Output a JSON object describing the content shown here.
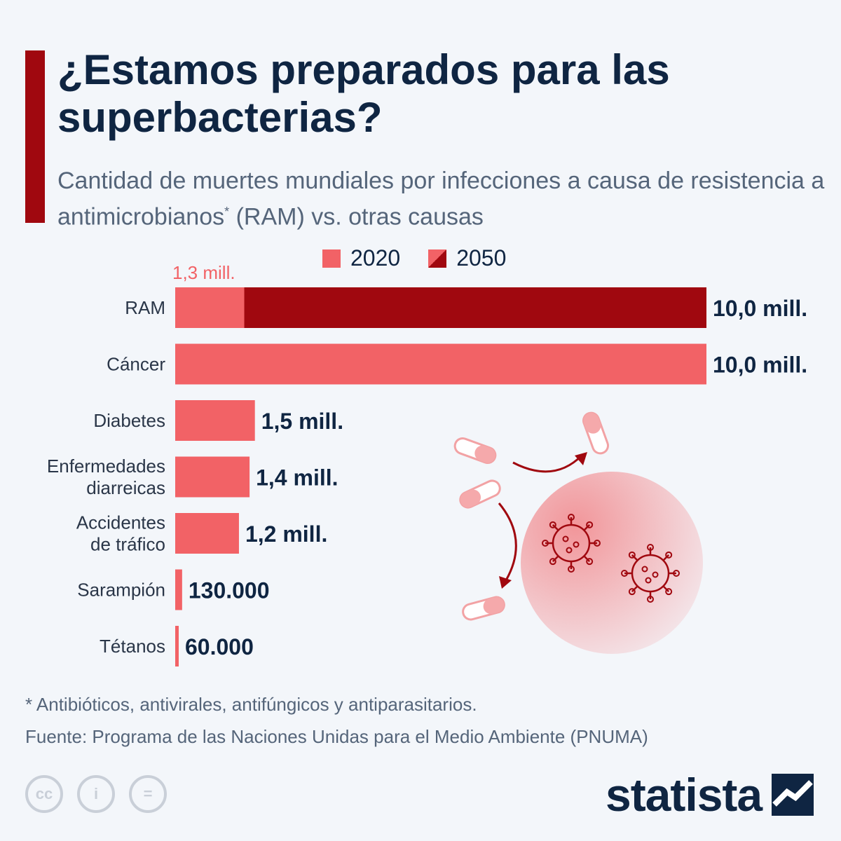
{
  "title": "¿Estamos preparados para las superbacterias?",
  "subtitle": "Cantidad de muertes mundiales por infecciones a causa de resistencia a antimicrobianos",
  "subtitle_sup": "*",
  "subtitle_tail": " (RAM) vs. otras causas",
  "colors": {
    "accent": "#a0080f",
    "bar_2020": "#f26266",
    "bar_2050": "#a0080f",
    "title": "#0f2542",
    "text_muted": "#55657a"
  },
  "legend": [
    {
      "label": "2020"
    },
    {
      "label": "2050"
    }
  ],
  "chart_data": {
    "type": "bar",
    "orientation": "horizontal",
    "categories": [
      "RAM",
      "Cáncer",
      "Diabetes",
      "Enfermedades diarreicas",
      "Accidentes de tráfico",
      "Sarampión",
      "Tétanos"
    ],
    "category_lines": [
      [
        "RAM"
      ],
      [
        "Cáncer"
      ],
      [
        "Diabetes"
      ],
      [
        "Enfermedades",
        "diarreicas"
      ],
      [
        "Accidentes",
        "de tráfico"
      ],
      [
        "Sarampión"
      ],
      [
        "Tétanos"
      ]
    ],
    "series": [
      {
        "name": "2020",
        "values": [
          1300000,
          10000000,
          1500000,
          1400000,
          1200000,
          130000,
          60000
        ]
      },
      {
        "name": "2050",
        "values": [
          10000000,
          null,
          null,
          null,
          null,
          null,
          null
        ]
      }
    ],
    "value_labels": [
      "10,0 mill.",
      "10,0 mill.",
      "1,5 mill.",
      "1,4 mill.",
      "1,2 mill.",
      "130.000",
      "60.000"
    ],
    "annotation_ram_2020": "1,3 mill.",
    "xlim": [
      0,
      10000000
    ],
    "legend_placement": "top",
    "grid": false
  },
  "footnote": "* Antibióticos, antivirales, antifúngicos y antiparasitarios.",
  "source": "Fuente: Programa de las Naciones Unidas para el Medio Ambiente (PNUMA)",
  "license_icons": [
    "cc-icon",
    "by-attribution-icon",
    "nd-equals-icon"
  ],
  "license_glyphs": [
    "cc",
    "i",
    "="
  ],
  "brand": {
    "name": "statista"
  }
}
